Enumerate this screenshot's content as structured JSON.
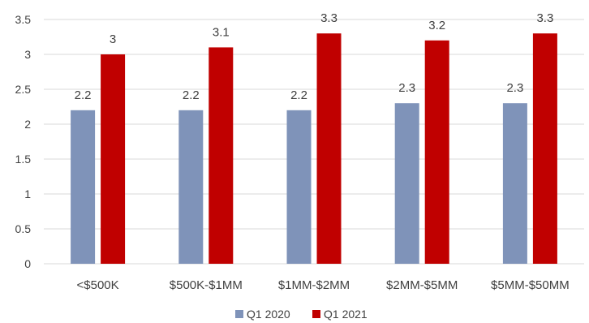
{
  "chart_data": {
    "type": "bar",
    "categories": [
      "<$500K",
      "$500K-$1MM",
      "$1MM-$2MM",
      "$2MM-$5MM",
      "$5MM-$50MM"
    ],
    "series": [
      {
        "name": "Q1 2020",
        "values": [
          2.2,
          2.2,
          2.2,
          2.3,
          2.3
        ],
        "labels": [
          "2.2",
          "2.2",
          "2.2",
          "2.3",
          "2.3"
        ],
        "color": "#7f93b9"
      },
      {
        "name": "Q1 2021",
        "values": [
          3,
          3.1,
          3.3,
          3.2,
          3.3
        ],
        "labels": [
          "3",
          "3.1",
          "3.3",
          "3.2",
          "3.3"
        ],
        "color": "#c00000"
      }
    ],
    "y_ticks": [
      "0",
      "0.5",
      "1",
      "1.5",
      "2",
      "2.5",
      "3",
      "3.5"
    ],
    "ylim": [
      0,
      3.5
    ],
    "grid": "horizontal",
    "gridline_color": "#d9d9d9",
    "legend": "bottom-center"
  }
}
